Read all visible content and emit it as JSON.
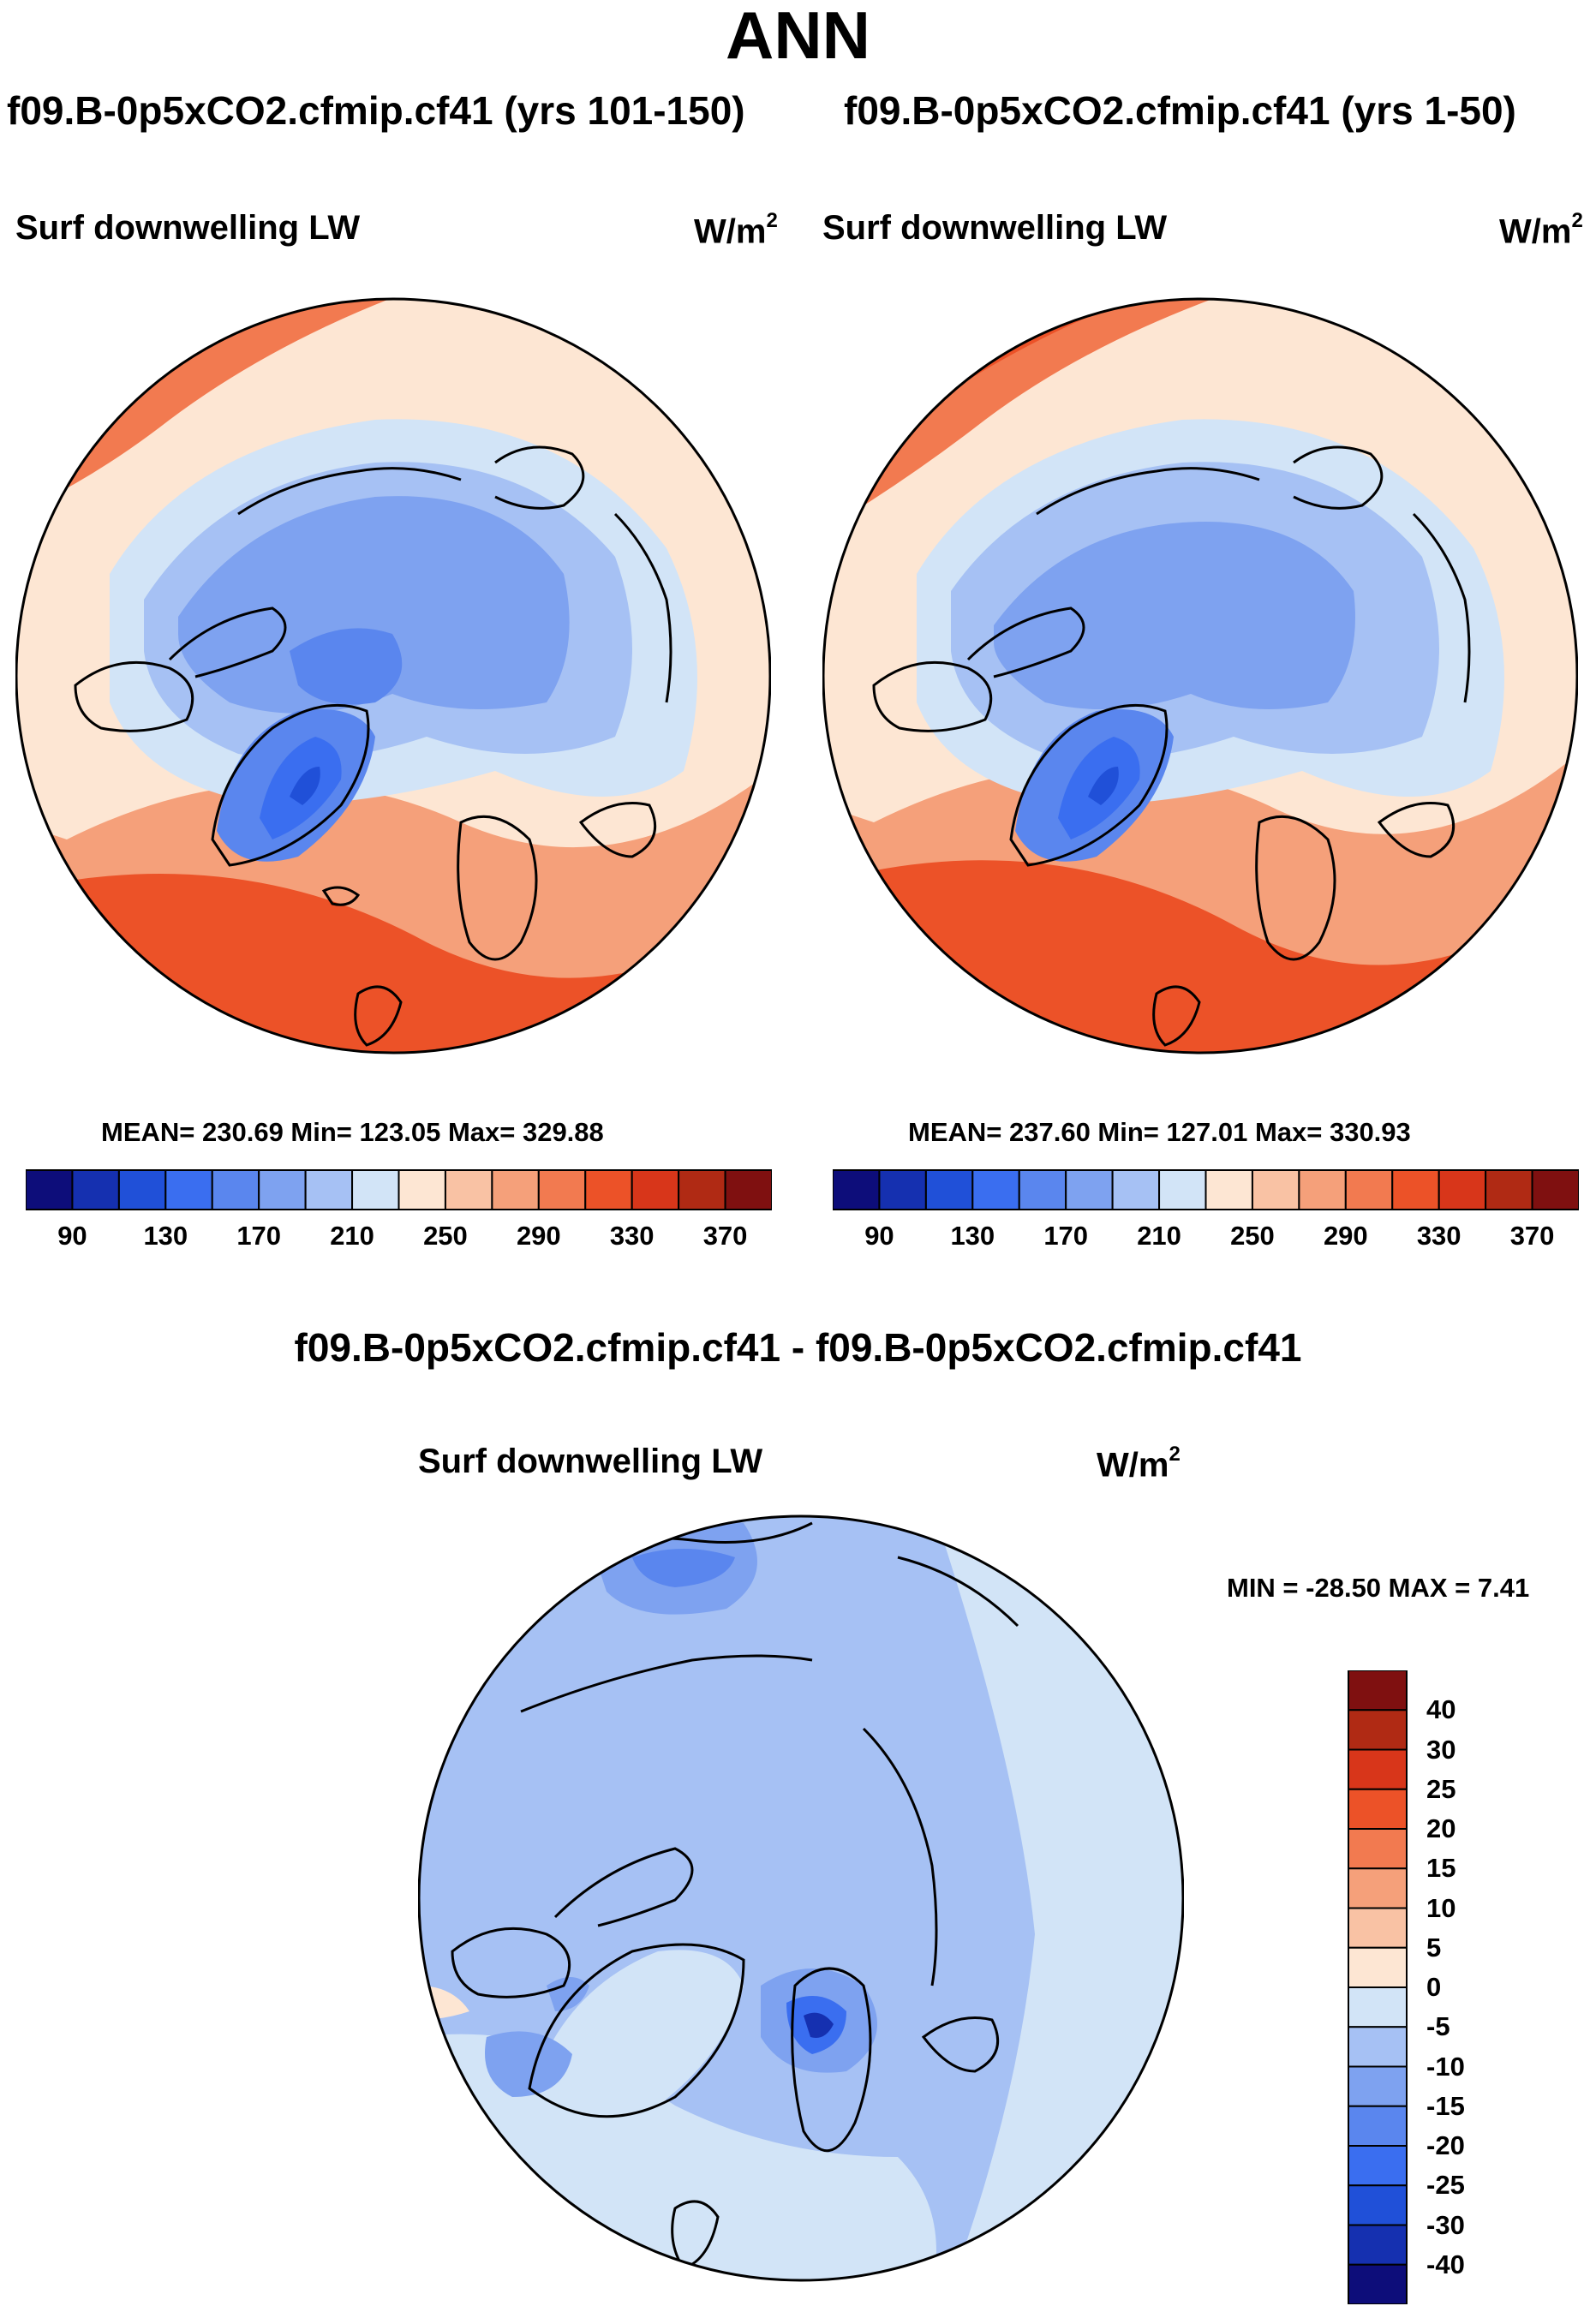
{
  "figure": {
    "title": "ANN",
    "case_left": "f09.B-0p5xCO2.cfmip.cf41 (yrs 101-150)",
    "case_right": "f09.B-0p5xCO2.cfmip.cf41 (yrs 1-50)",
    "diff_title": "f09.B-0p5xCO2.cfmip.cf41 - f09.B-0p5xCO2.cfmip.cf41"
  },
  "panels": {
    "left": {
      "title": "Surf downwelling LW",
      "units": "W/m",
      "units_exp": "2",
      "stats": "MEAN= 230.69  Min= 123.05  Max= 329.88"
    },
    "right": {
      "title": "Surf downwelling LW",
      "units": "W/m",
      "units_exp": "2",
      "stats": "MEAN= 237.60  Min= 127.01  Max= 330.93"
    },
    "diff": {
      "title": "Surf downwelling LW",
      "units": "W/m",
      "units_exp": "2",
      "stats": "MIN = -28.50 MAX =   7.41"
    }
  },
  "colorbar_abs": {
    "colors": [
      "#0d0d7a",
      "#1530b0",
      "#2050d8",
      "#3a6ef0",
      "#5a86ee",
      "#7ea2f0",
      "#a6c1f4",
      "#d2e4f7",
      "#fde6d3",
      "#f9c2a4",
      "#f5a07a",
      "#f27a50",
      "#ec5228",
      "#d8361a",
      "#b02a14",
      "#7f1010"
    ],
    "tick_labels": [
      "90",
      "130",
      "170",
      "210",
      "250",
      "290",
      "330",
      "370"
    ]
  },
  "colorbar_diff": {
    "colors": [
      "#0d0d7a",
      "#1530b0",
      "#2050d8",
      "#3a6ef0",
      "#5a86ee",
      "#7ea2f0",
      "#a6c1f4",
      "#d2e4f7",
      "#fde6d3",
      "#f9c2a4",
      "#f5a07a",
      "#f27a50",
      "#ec5228",
      "#d8361a",
      "#b02a14",
      "#7f1010"
    ],
    "tick_labels": [
      "40",
      "30",
      "25",
      "20",
      "15",
      "10",
      "5",
      "0",
      "-5",
      "-10",
      "-15",
      "-20",
      "-25",
      "-30",
      "-40"
    ]
  }
}
